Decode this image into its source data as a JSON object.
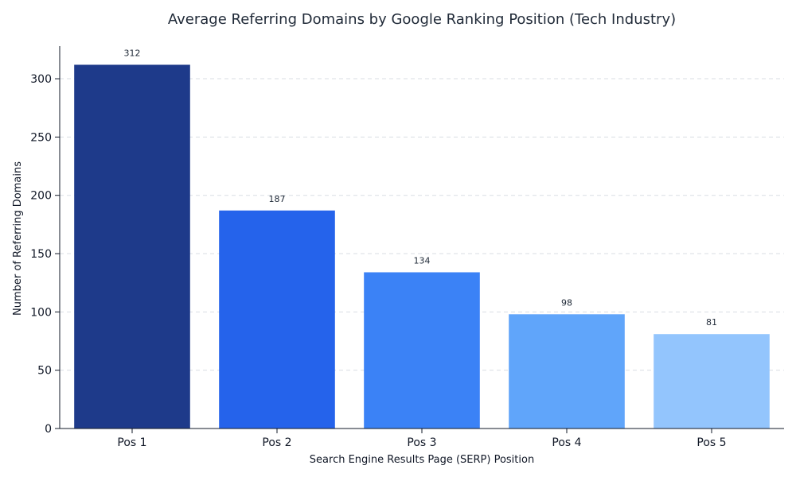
{
  "chart_data": {
    "type": "bar",
    "title": "Average Referring Domains by Google Ranking Position (Tech Industry)",
    "xlabel": "Search Engine Results Page (SERP) Position",
    "ylabel": "Number of Referring Domains",
    "categories": [
      "Pos 1",
      "Pos 2",
      "Pos 3",
      "Pos 4",
      "Pos 5"
    ],
    "values": [
      312,
      187,
      134,
      98,
      81
    ],
    "value_labels": [
      "312",
      "187",
      "134",
      "98",
      "81"
    ],
    "colors": [
      "#1e3a8a",
      "#2563eb",
      "#3b82f6",
      "#60a5fa",
      "#93c5fd"
    ],
    "ylim": [
      0,
      328
    ],
    "yticks": [
      0,
      50,
      100,
      150,
      200,
      250,
      300
    ],
    "grid": true,
    "legend": "none"
  }
}
